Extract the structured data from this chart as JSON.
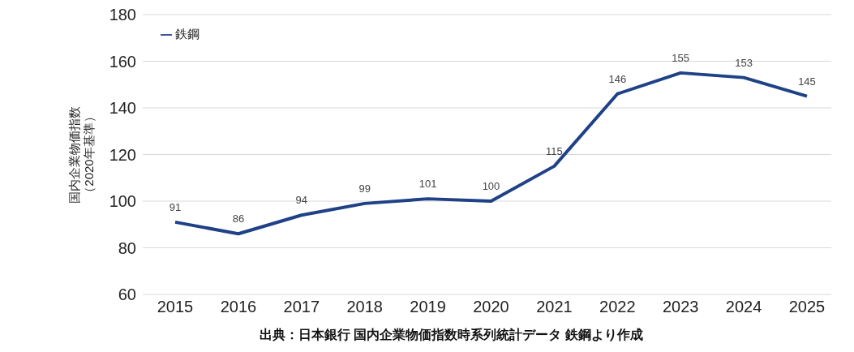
{
  "chart_data": {
    "type": "line",
    "ylabel": "国内企業物価指数（2020年基準）",
    "categories": [
      "2015",
      "2016",
      "2017",
      "2018",
      "2019",
      "2020",
      "2021",
      "2022",
      "2023",
      "2024",
      "2025"
    ],
    "series": [
      {
        "name": "鉄鋼",
        "color": "#1f4187",
        "values": [
          91,
          86,
          94,
          99,
          101,
          100,
          115,
          146,
          155,
          153,
          145
        ]
      }
    ],
    "ylim": [
      60,
      180
    ],
    "yticks": [
      60,
      80,
      100,
      120,
      140,
      160,
      180
    ],
    "grid": "y",
    "legend": "top left",
    "data_labels": true,
    "marker": "none",
    "line_style": "solid",
    "annotations": [
      "出典：日本銀行 国内企業物価指数時系列統計データ 鉄鋼より作成"
    ]
  }
}
